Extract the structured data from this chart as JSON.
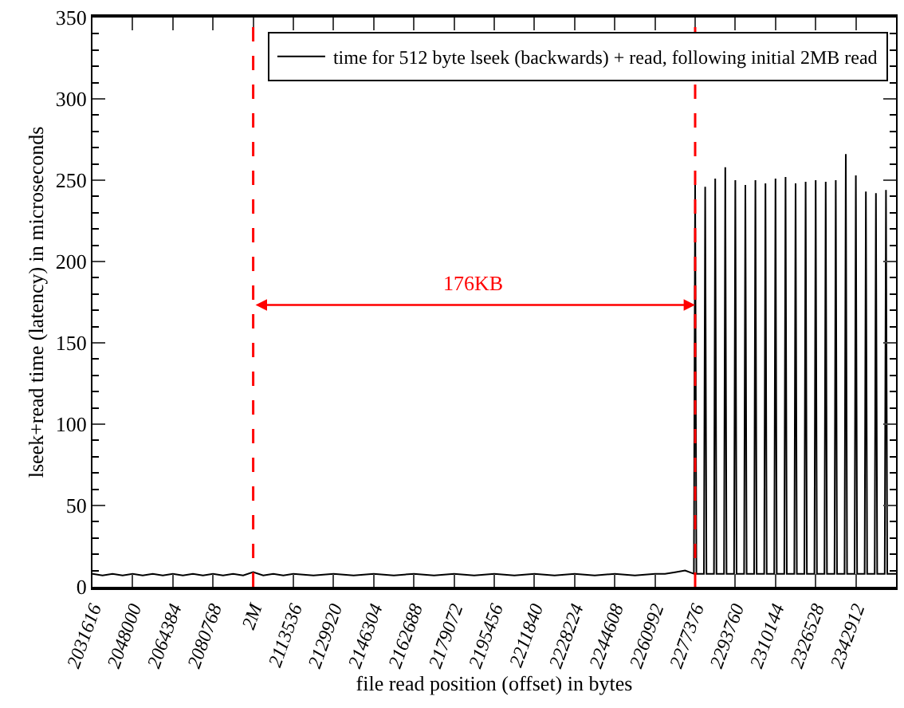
{
  "chart_data": {
    "type": "line",
    "xlabel": "file read position (offset) in bytes",
    "ylabel": "lseek+read time (latency) in microseconds",
    "series": [
      {
        "name": "time for 512 byte lseek (backwards) + read, following initial 2MB read",
        "color": "#000000",
        "x": [
          2031616,
          2035712,
          2039808,
          2043904,
          2048000,
          2052096,
          2056192,
          2060288,
          2064384,
          2068480,
          2072576,
          2076672,
          2080768,
          2084864,
          2088960,
          2093056,
          2097152,
          2101248,
          2105344,
          2109440,
          2113536,
          2121728,
          2129920,
          2138112,
          2146304,
          2154496,
          2162688,
          2170880,
          2179072,
          2187264,
          2195456,
          2203648,
          2211840,
          2220032,
          2228224,
          2236416,
          2244608,
          2252800,
          2260992,
          2265088,
          2269184,
          2273280,
          2276864,
          2277376,
          2277888,
          2280960,
          2281472,
          2281984,
          2285056,
          2285568,
          2286080,
          2289152,
          2289664,
          2290176,
          2293248,
          2293760,
          2294272,
          2297344,
          2297856,
          2298368,
          2301440,
          2301952,
          2302464,
          2305536,
          2306048,
          2306560,
          2309632,
          2310144,
          2310656,
          2313728,
          2314240,
          2314752,
          2317824,
          2318336,
          2318848,
          2321920,
          2322432,
          2322944,
          2326016,
          2326528,
          2327040,
          2330112,
          2330624,
          2331136,
          2334208,
          2334720,
          2335232,
          2338304,
          2338816,
          2339328,
          2342400,
          2342912,
          2343424,
          2346496,
          2347008,
          2347520,
          2350592,
          2351104,
          2351616,
          2354688,
          2355200,
          2355712,
          2359296
        ],
        "values": [
          8,
          7,
          8,
          7,
          8,
          7,
          8,
          7,
          8,
          7,
          8,
          7,
          8,
          7,
          8,
          7,
          9,
          7,
          8,
          7,
          8,
          7,
          8,
          7,
          8,
          7,
          8,
          7,
          8,
          7,
          8,
          7,
          8,
          7,
          8,
          7,
          8,
          7,
          8,
          8,
          9,
          10,
          8,
          248,
          8,
          8,
          246,
          8,
          8,
          251,
          8,
          8,
          258,
          8,
          8,
          250,
          8,
          8,
          247,
          8,
          8,
          250,
          8,
          8,
          248,
          8,
          8,
          251,
          8,
          8,
          252,
          8,
          8,
          248,
          8,
          8,
          249,
          8,
          8,
          250,
          8,
          8,
          249,
          8,
          8,
          250,
          8,
          8,
          266,
          8,
          8,
          253,
          8,
          8,
          243,
          8,
          8,
          242,
          8,
          8,
          244,
          8,
          8
        ]
      }
    ],
    "xlim": [
      2031616,
      2359296
    ],
    "xticks": [
      2031616,
      2048000,
      2064384,
      2080768,
      {
        "value": 2097152,
        "label": "2M"
      },
      2113536,
      2129920,
      2146304,
      2162688,
      2179072,
      2195456,
      2211840,
      2228224,
      2244608,
      2260992,
      2277376,
      2293760,
      2310144,
      2326528,
      2342912
    ],
    "ylim": [
      0,
      350
    ],
    "yticks": [
      0,
      50,
      100,
      150,
      200,
      250,
      300,
      350
    ],
    "ref_lines": [
      {
        "axis": "x",
        "value": 2097152,
        "color": "#ff0000",
        "line_style": "dashed"
      },
      {
        "axis": "x",
        "value": 2277376,
        "color": "#ff0000",
        "line_style": "dashed"
      }
    ],
    "annotations": [
      "176KB"
    ],
    "legend": "top right",
    "marker": "none",
    "line_style": "solid"
  }
}
